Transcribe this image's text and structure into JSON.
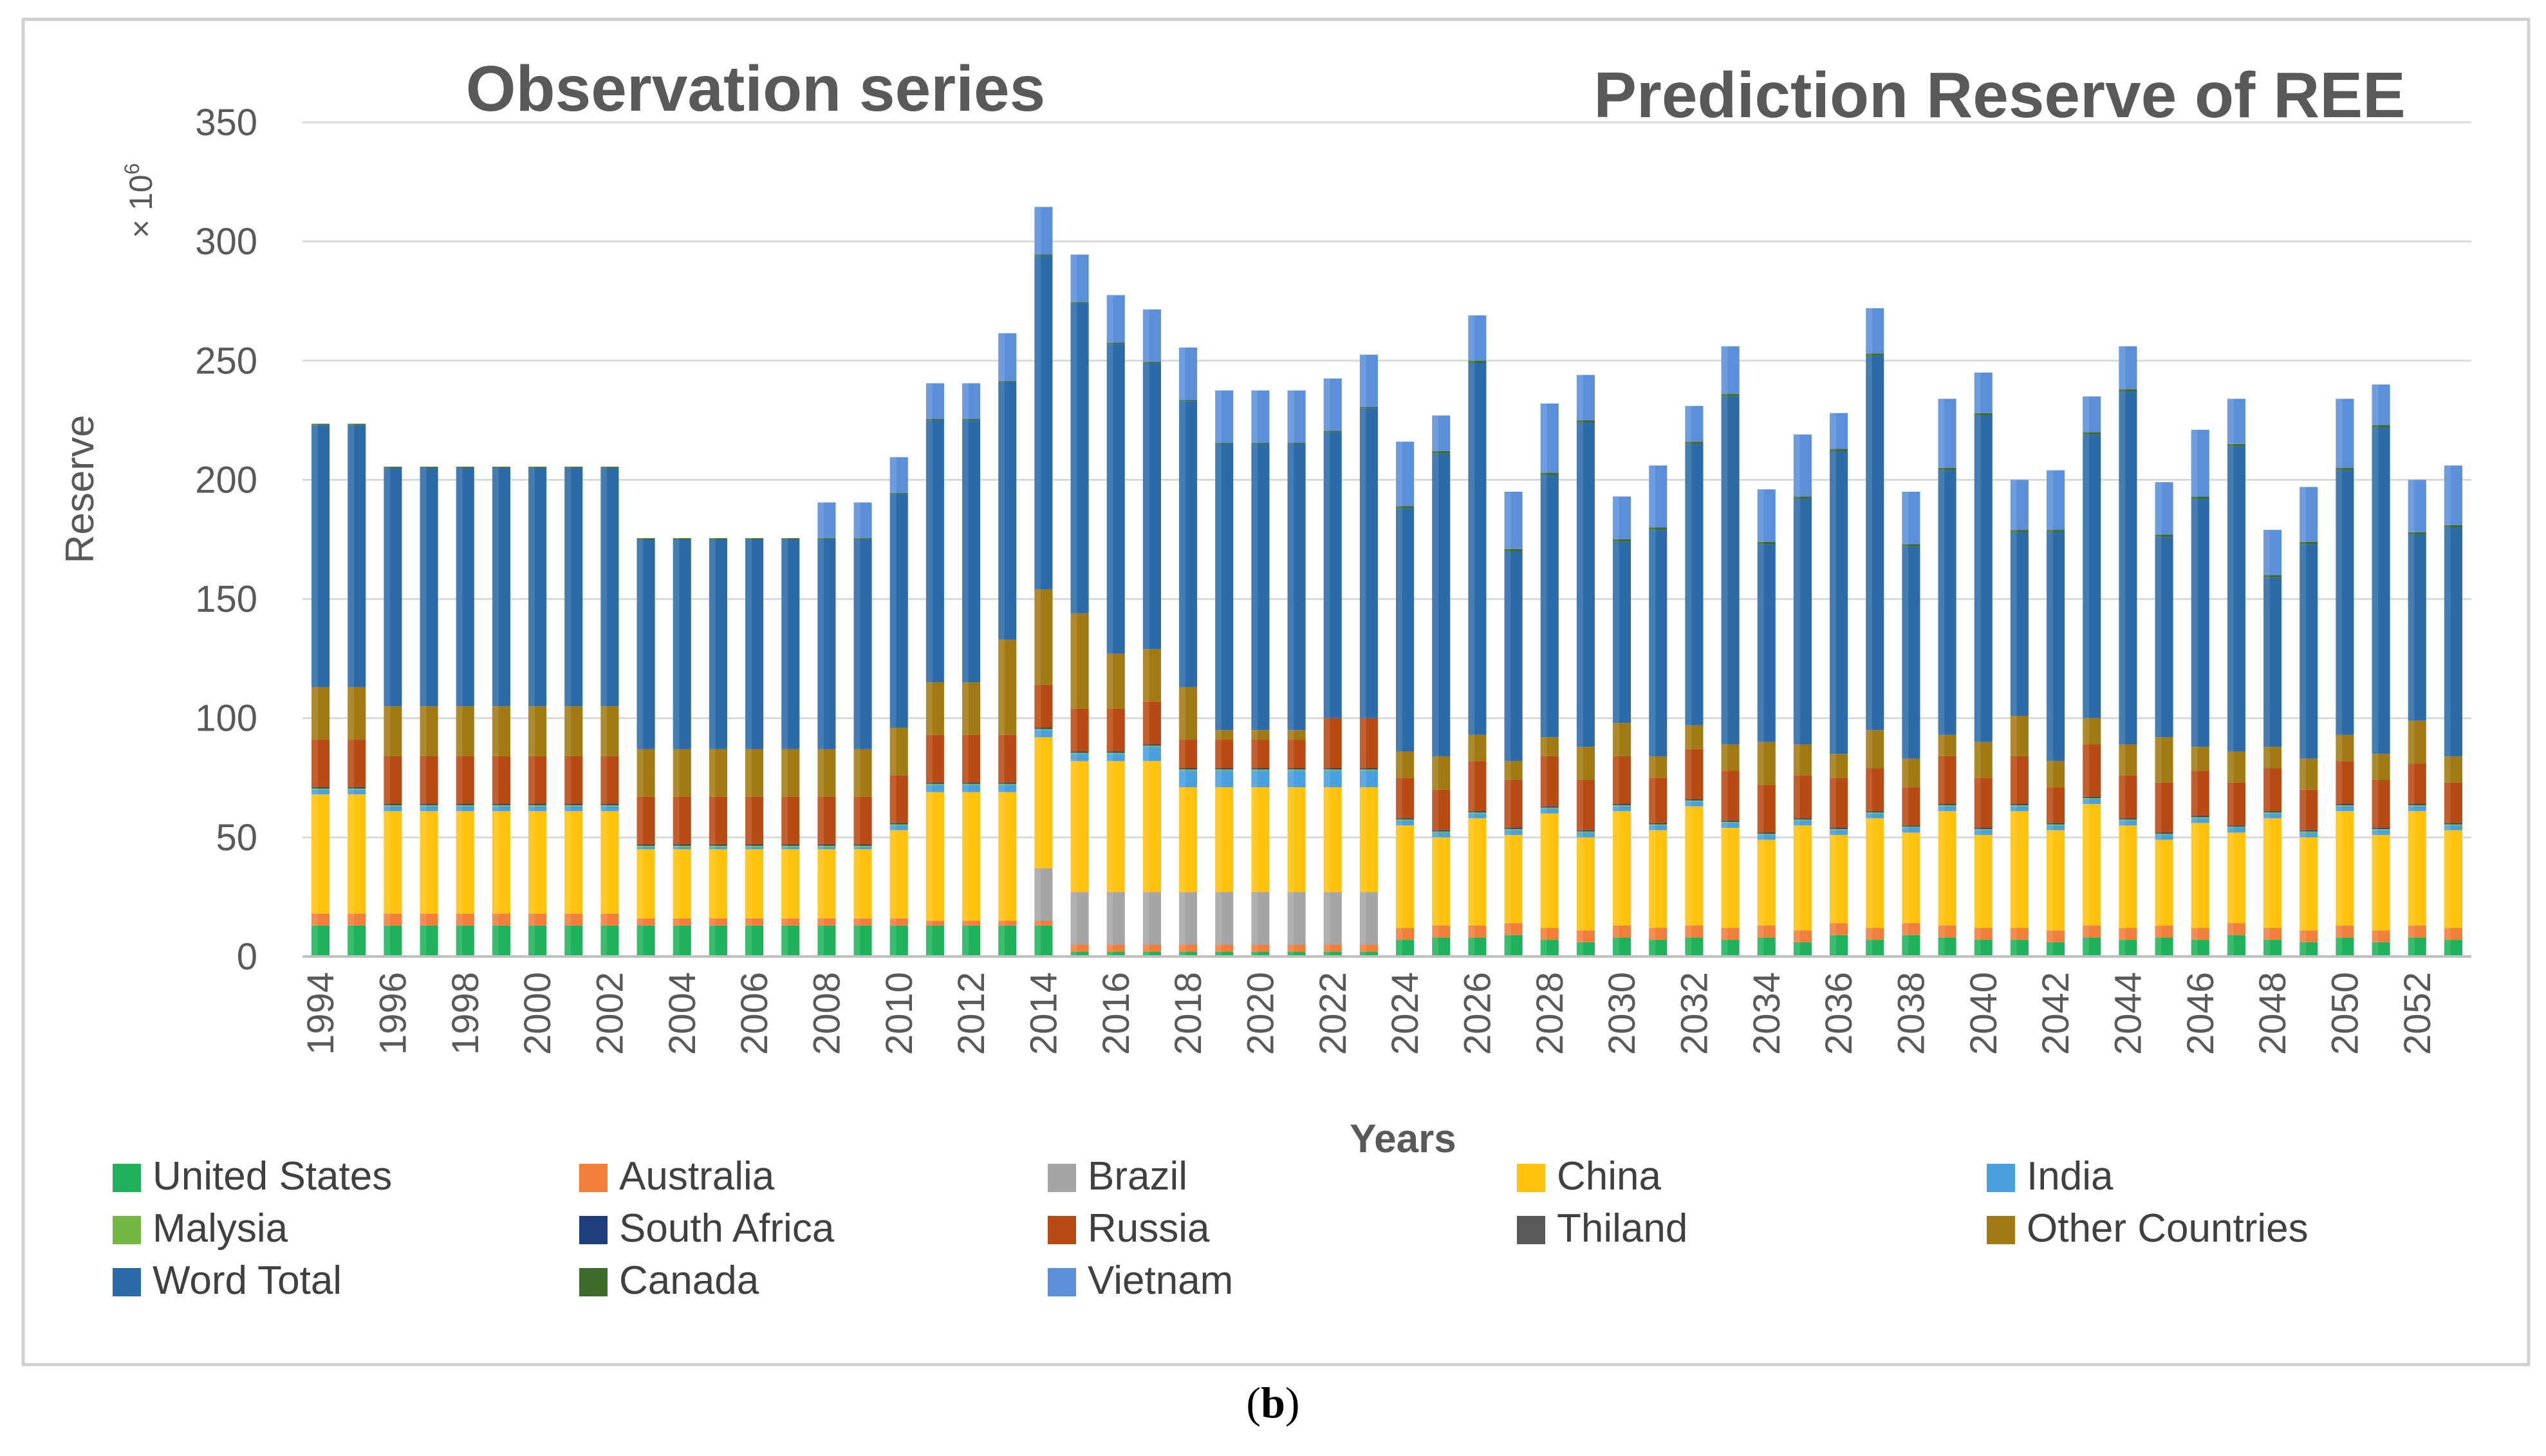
{
  "figure_label": {
    "open": "(",
    "letter": "b",
    "close": ")"
  },
  "chart_data": {
    "type": "bar",
    "stacked": true,
    "annotations": {
      "left": "Observation series",
      "right": "Prediction Reserve of REE"
    },
    "xlabel": "Years",
    "ylabel": "Reserve",
    "yunit": "× 10",
    "yunit_exp": "6",
    "ylim": [
      0,
      350
    ],
    "yticks": [
      0,
      50,
      100,
      150,
      200,
      250,
      300,
      350
    ],
    "grid": true,
    "legend_position": "bottom",
    "categories": [
      "1994",
      "1995",
      "1996",
      "1997",
      "1998",
      "1999",
      "2000",
      "2001",
      "2002",
      "2003",
      "2004",
      "2005",
      "2006",
      "2007",
      "2008",
      "2009",
      "2010",
      "2011",
      "2012",
      "2013",
      "2014",
      "2015",
      "2016",
      "2017",
      "2018",
      "2019",
      "2020",
      "2021",
      "2022",
      "2023",
      "2024",
      "2025",
      "2026",
      "2027",
      "2028",
      "2029",
      "2030",
      "2031",
      "2032",
      "2033",
      "2034",
      "2035",
      "2036",
      "2037",
      "2038",
      "2039",
      "2040",
      "2041",
      "2042",
      "2043",
      "2044",
      "2045",
      "2046",
      "2047",
      "2048",
      "2049",
      "2050",
      "2051",
      "2052",
      "2053"
    ],
    "tick_labels": [
      "1994",
      "1996",
      "1998",
      "2000",
      "2002",
      "2004",
      "2006",
      "2008",
      "2010",
      "2012",
      "2014",
      "2016",
      "2018",
      "2020",
      "2022",
      "2024",
      "2026",
      "2028",
      "2030",
      "2032",
      "2034",
      "2036",
      "2038",
      "2040",
      "2042",
      "2044",
      "2046",
      "2048",
      "2050",
      "2052"
    ],
    "series": [
      {
        "name": "United States",
        "color": "#1fb25a",
        "values": [
          13,
          13,
          13,
          13,
          13,
          13,
          13,
          13,
          13,
          13,
          13,
          13,
          13,
          13,
          13,
          13,
          13,
          13,
          13,
          13,
          13,
          2,
          2,
          2,
          2,
          2,
          2,
          2,
          2,
          2,
          7,
          8,
          8,
          9,
          7,
          6,
          8,
          7,
          8,
          7,
          8,
          6,
          9,
          7,
          9,
          8,
          7,
          7,
          6,
          8,
          7,
          8,
          7,
          9,
          7,
          6,
          8,
          6,
          8,
          7
        ]
      },
      {
        "name": "Australia",
        "color": "#f07f3c",
        "values": [
          5,
          5,
          5,
          5,
          5,
          5,
          5,
          5,
          5,
          3,
          3,
          3,
          3,
          3,
          3,
          3,
          3,
          2,
          2,
          2,
          2,
          3,
          3,
          3,
          3,
          3,
          3,
          3,
          3,
          3,
          5,
          5,
          5,
          5,
          5,
          5,
          5,
          5,
          5,
          5,
          5,
          5,
          5,
          5,
          5,
          5,
          5,
          5,
          5,
          5,
          5,
          5,
          5,
          5,
          5,
          5,
          5,
          5,
          5,
          5
        ]
      },
      {
        "name": "Brazil",
        "color": "#a5a5a5",
        "values": [
          0,
          0,
          0,
          0,
          0,
          0,
          0,
          0,
          0,
          0,
          0,
          0,
          0,
          0,
          0,
          0,
          0,
          0,
          0,
          0,
          22,
          22,
          22,
          22,
          22,
          22,
          22,
          22,
          22,
          22,
          0,
          0,
          0,
          0,
          0,
          0,
          0,
          0,
          0,
          0,
          0,
          0,
          0,
          0,
          0,
          0,
          0,
          0,
          0,
          0,
          0,
          0,
          0,
          0,
          0,
          0,
          0,
          0,
          0,
          0
        ]
      },
      {
        "name": "China",
        "color": "#ffc20e",
        "values": [
          50,
          50,
          43,
          43,
          43,
          43,
          43,
          43,
          43,
          29,
          29,
          29,
          29,
          29,
          29,
          29,
          37,
          54,
          54,
          54,
          55,
          55,
          55,
          55,
          44,
          44,
          44,
          44,
          44,
          44,
          43,
          37,
          45,
          37,
          48,
          39,
          48,
          41,
          50,
          42,
          36,
          44,
          37,
          46,
          38,
          48,
          39,
          49,
          42,
          51,
          43,
          36,
          44,
          38,
          46,
          39,
          48,
          40,
          48,
          41
        ]
      },
      {
        "name": "India",
        "color": "#4a9fde",
        "values": [
          2,
          2,
          2,
          2,
          2,
          2,
          2,
          2,
          2,
          1,
          1,
          1,
          1,
          1,
          1,
          1,
          2,
          3,
          3,
          3,
          3,
          3,
          3,
          6,
          7,
          7,
          7,
          7,
          7,
          7,
          2,
          2,
          2,
          2,
          2,
          2,
          2,
          2,
          2,
          2,
          2,
          2,
          2,
          2,
          2,
          2,
          2,
          2,
          2,
          2,
          2,
          2,
          2,
          2,
          2,
          2,
          2,
          2,
          2,
          2
        ]
      },
      {
        "name": "Malysia",
        "color": "#72b843",
        "values": [
          0.5,
          0.5,
          0.5,
          0.5,
          0.5,
          0.5,
          0.5,
          0.5,
          0.5,
          0.5,
          0.5,
          0.5,
          0.5,
          0.5,
          0.5,
          0.5,
          0.5,
          0.5,
          0.5,
          0.5,
          0.5,
          0.5,
          0.5,
          0.5,
          0.5,
          0.5,
          0.5,
          0.5,
          0.5,
          0.5,
          0.5,
          0.5,
          0.5,
          0.5,
          0.5,
          0.5,
          0.5,
          0.5,
          0.5,
          0.5,
          0.5,
          0.5,
          0.5,
          0.5,
          0.5,
          0.5,
          0.5,
          0.5,
          0.5,
          0.5,
          0.5,
          0.5,
          0.5,
          0.5,
          0.5,
          0.5,
          0.5,
          0.5,
          0.5,
          0.5
        ]
      },
      {
        "name": "South Africa",
        "color": "#1f3f7a",
        "values": [
          0.5,
          0.5,
          0.5,
          0.5,
          0.5,
          0.5,
          0.5,
          0.5,
          0.5,
          0.5,
          0.5,
          0.5,
          0.5,
          0.5,
          0.5,
          0.5,
          0.5,
          0.5,
          0.5,
          0.5,
          0.5,
          0.5,
          0.5,
          0.5,
          0.5,
          0.5,
          0.5,
          0.5,
          0.5,
          0.5,
          0.5,
          0.5,
          0.5,
          0.5,
          0.5,
          0.5,
          0.5,
          0.5,
          0.5,
          0.5,
          0.5,
          0.5,
          0.5,
          0.5,
          0.5,
          0.5,
          0.5,
          0.5,
          0.5,
          0.5,
          0.5,
          0.5,
          0.5,
          0.5,
          0.5,
          0.5,
          0.5,
          0.5,
          0.5,
          0.5
        ]
      },
      {
        "name": "Russia",
        "color": "#b84a14",
        "values": [
          20,
          20,
          20,
          20,
          20,
          20,
          20,
          20,
          20,
          20,
          20,
          20,
          20,
          20,
          20,
          20,
          20,
          20,
          20,
          20,
          18,
          18,
          18,
          18,
          12,
          12,
          12,
          12,
          21,
          21,
          17,
          17,
          21,
          20,
          21,
          21,
          20,
          19,
          21,
          21,
          20,
          18,
          21,
          18,
          16,
          20,
          21,
          20,
          15,
          22,
          18,
          21,
          19,
          18,
          18,
          17,
          18,
          20,
          17,
          17
        ]
      },
      {
        "name": "Thiland",
        "color": "#595959",
        "values": [
          0,
          0,
          0,
          0,
          0,
          0,
          0,
          0,
          0,
          0,
          0,
          0,
          0,
          0,
          0,
          0,
          0,
          0,
          0,
          0,
          0,
          0,
          0,
          0,
          0,
          0,
          0,
          0,
          0,
          0,
          0,
          0,
          0,
          0,
          0,
          0,
          0,
          0,
          0,
          0,
          0,
          0,
          0,
          0,
          0,
          0,
          0,
          0,
          0,
          0,
          0,
          0,
          0,
          0,
          0,
          0,
          0,
          0,
          0,
          0
        ]
      },
      {
        "name": "Other Countries",
        "color": "#a27a14",
        "values": [
          22,
          22,
          21,
          21,
          21,
          21,
          21,
          21,
          21,
          20,
          20,
          20,
          20,
          20,
          20,
          20,
          20,
          22,
          22,
          40,
          40,
          40,
          23,
          22,
          22,
          4,
          4,
          4,
          0,
          0,
          11,
          14,
          11,
          8,
          8,
          14,
          14,
          9,
          10,
          11,
          18,
          13,
          10,
          16,
          12,
          9,
          15,
          17,
          11,
          11,
          13,
          19,
          10,
          13,
          9,
          13,
          11,
          11,
          18,
          11
        ]
      },
      {
        "name": "Word Total",
        "color": "#2c6aa8",
        "values": [
          110,
          110,
          100,
          100,
          100,
          100,
          100,
          100,
          100,
          88,
          88,
          88,
          88,
          88,
          88,
          88,
          98,
          110,
          110,
          108,
          140,
          130,
          130,
          120,
          120,
          120,
          120,
          120,
          120,
          130,
          102,
          127,
          156,
          88,
          110,
          136,
          76,
          95,
          118,
          146,
          83,
          103,
          127,
          157,
          89,
          111,
          137,
          77,
          96,
          119,
          148,
          84,
          104,
          128,
          71,
          90,
          111,
          137,
          78,
          96
        ]
      },
      {
        "name": "Canada",
        "color": "#3d6b2a",
        "values": [
          0.5,
          0.5,
          0.5,
          0.5,
          0.5,
          0.5,
          0.5,
          0.5,
          0.5,
          0.5,
          0.5,
          0.5,
          0.5,
          0.5,
          0.5,
          0.5,
          0.5,
          0.5,
          0.5,
          0.5,
          0.5,
          0.5,
          0.5,
          0.5,
          0.5,
          0.5,
          0.5,
          0.5,
          0.5,
          0.5,
          1,
          1,
          1,
          1,
          1,
          1,
          1,
          1,
          1,
          1,
          1,
          1,
          1,
          1,
          1,
          1,
          1,
          1,
          1,
          1,
          1,
          1,
          1,
          1,
          1,
          1,
          1,
          1,
          1,
          1
        ]
      },
      {
        "name": "Vietnam",
        "color": "#5b8fd9",
        "values": [
          0,
          0,
          0,
          0,
          0,
          0,
          0,
          0,
          0,
          0,
          0,
          0,
          0,
          0,
          15,
          15,
          15,
          15,
          15,
          20,
          20,
          20,
          20,
          22,
          22,
          22,
          22,
          22,
          22,
          22,
          27,
          15,
          19,
          24,
          29,
          19,
          18,
          26,
          15,
          20,
          22,
          26,
          15,
          19,
          22,
          29,
          17,
          21,
          25,
          15,
          18,
          22,
          28,
          19,
          19,
          23,
          29,
          17,
          22,
          25
        ]
      }
    ]
  }
}
